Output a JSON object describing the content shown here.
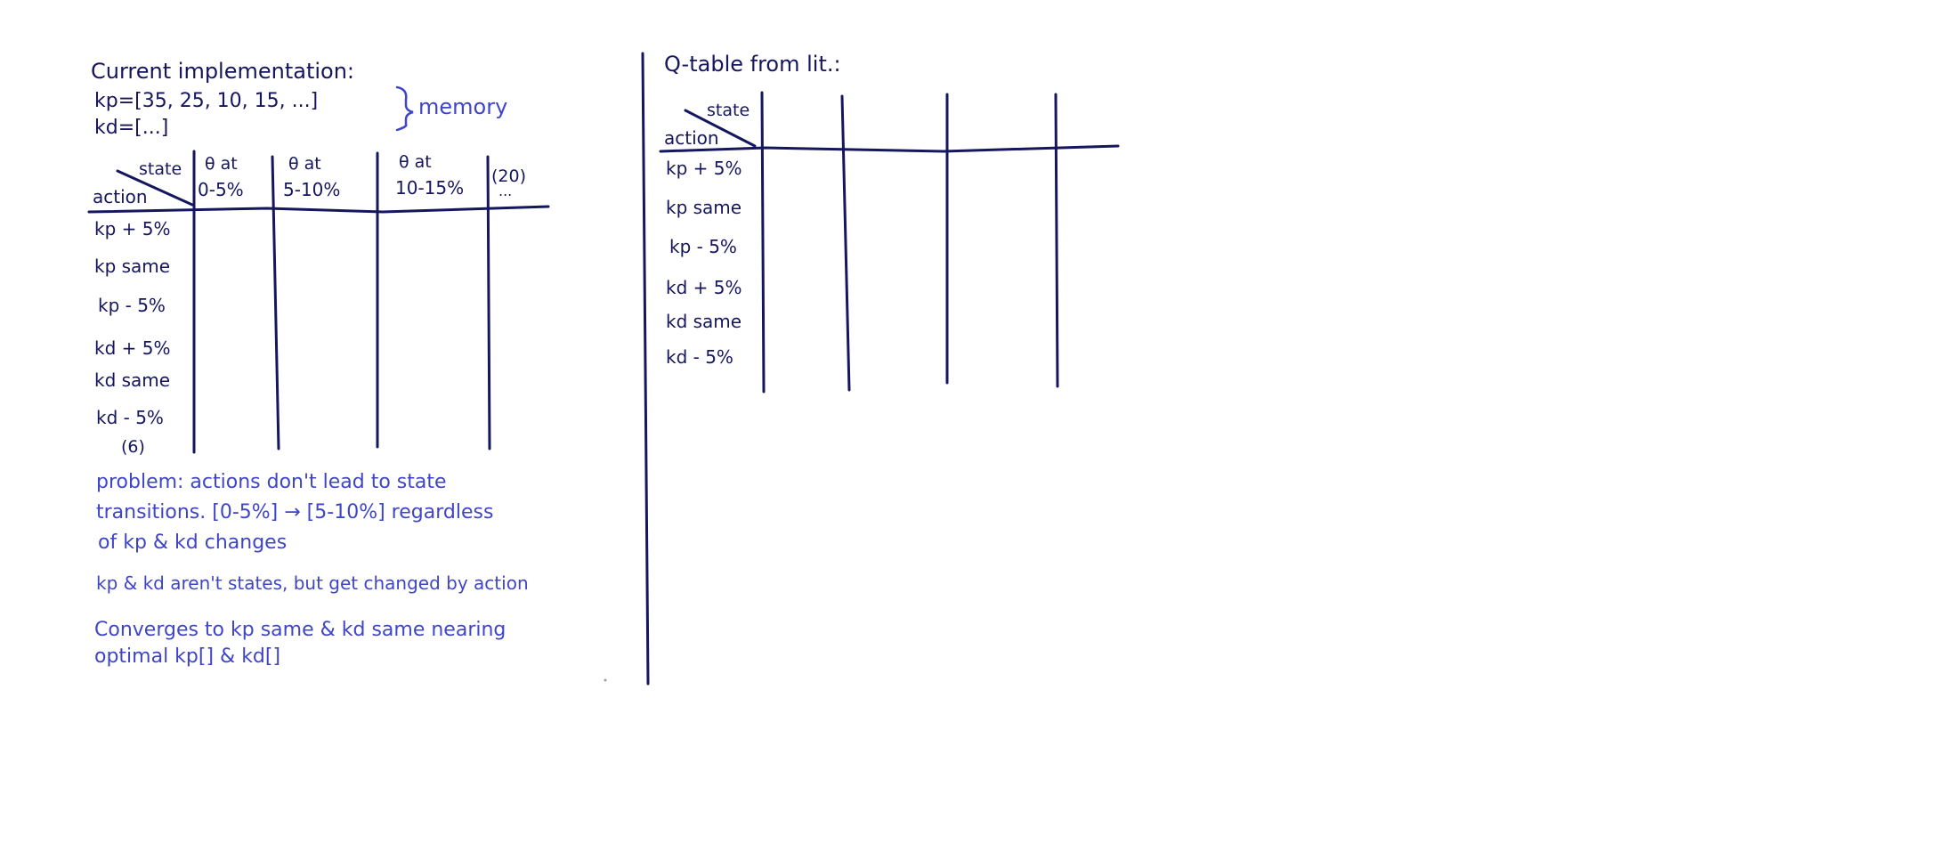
{
  "left": {
    "heading": "Current implementation:",
    "kp_line": "kp=[35, 25, 10, 15, ...]",
    "kd_line": "kd=[...]",
    "memory_label": "memory",
    "corner_state": "state",
    "corner_action": "action",
    "columns": [
      {
        "line1": "θ at",
        "line2": "0-5%"
      },
      {
        "line1": "θ at",
        "line2": "5-10%"
      },
      {
        "line1": "θ at",
        "line2": "10-15%"
      },
      {
        "line1": "(20)",
        "line2": "..."
      }
    ],
    "rows": [
      "kp + 5%",
      "kp same",
      "kp - 5%",
      "kd + 5%",
      "kd same",
      "kd - 5%"
    ],
    "row_count": "(6)",
    "notes": [
      "problem: actions don't lead to state",
      "transitions. [0-5%] → [5-10%] regardless",
      "of kp & kd changes",
      "kp & kd aren't states, but get changed by action",
      "Converges to kp same & kd same nearing",
      "optimal kp[] & kd[]"
    ]
  },
  "right": {
    "heading": "Q-table from lit.:",
    "corner_state": "state",
    "corner_action": "action",
    "rows": [
      "kp + 5%",
      "kp same",
      "kp - 5%",
      "kd + 5%",
      "kd same",
      "kd - 5%"
    ]
  }
}
